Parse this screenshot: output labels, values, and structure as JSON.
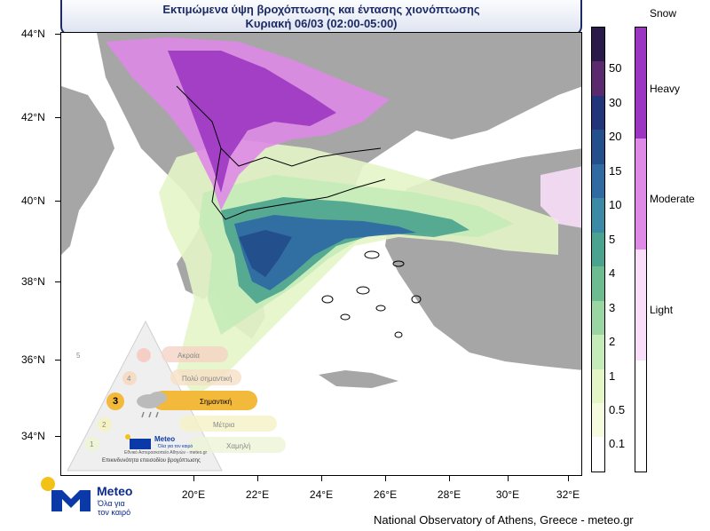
{
  "title": {
    "line1": "Εκτιμώμενα ύψη βροχόπτωσης και έντασης χιονόπτωσης",
    "line2": "Κυριακή 06/03 (02:00-05:00)"
  },
  "axes": {
    "lat_ticks": [
      "44°N",
      "42°N",
      "40°N",
      "38°N",
      "36°N",
      "34°N"
    ],
    "lon_ticks": [
      "20°E",
      "22°E",
      "24°E",
      "26°E",
      "28°E",
      "30°E",
      "32°E"
    ]
  },
  "rain_scale": {
    "labels": [
      "50",
      "30",
      "20",
      "15",
      "10",
      "5",
      "4",
      "3",
      "2",
      "1",
      "0.5",
      "0.1"
    ],
    "colors": [
      "#2a1a4a",
      "#5b2a6e",
      "#22357a",
      "#234f8c",
      "#2f6aa3",
      "#3a8aa6",
      "#4aa38e",
      "#6bbd8f",
      "#99d6a3",
      "#c4ebb8",
      "#e4f5c6",
      "#f5fbde",
      "#ffffff"
    ]
  },
  "snow_scale": {
    "title": "Snow",
    "labels": [
      "Heavy",
      "Moderate",
      "Light"
    ],
    "colors": [
      "#9c36c2",
      "#de8ae6",
      "#f8def9",
      "#ffffff"
    ]
  },
  "pyramid": {
    "levels": [
      {
        "num": "5",
        "label": "Ακραία"
      },
      {
        "num": "4",
        "label": "Πολύ σημαντική"
      },
      {
        "num": "3",
        "label": "Σημαντική"
      },
      {
        "num": "2",
        "label": "Μέτρια"
      },
      {
        "num": "1",
        "label": "Χαμηλή"
      }
    ],
    "brand": "Meteo",
    "brand_sub": "Όλα για τον καιρό",
    "brand_small": "Εθνικό Αστεροσκοπείο Αθηνών - meteo.gr",
    "caption": "Επικινδυνότητα επεισοδίου βροχόπτωσης"
  },
  "logo": {
    "name": "Meteo",
    "tagline": "Όλα για τον καιρό"
  },
  "credit": "National Observatory of Athens, Greece - meteo.gr",
  "colors": {
    "land": "#a6a6a6",
    "sea": "#ffffff",
    "title_border": "#1c2a66",
    "logo_blue": "#0b3aa8",
    "logo_yellow": "#f2c316"
  }
}
